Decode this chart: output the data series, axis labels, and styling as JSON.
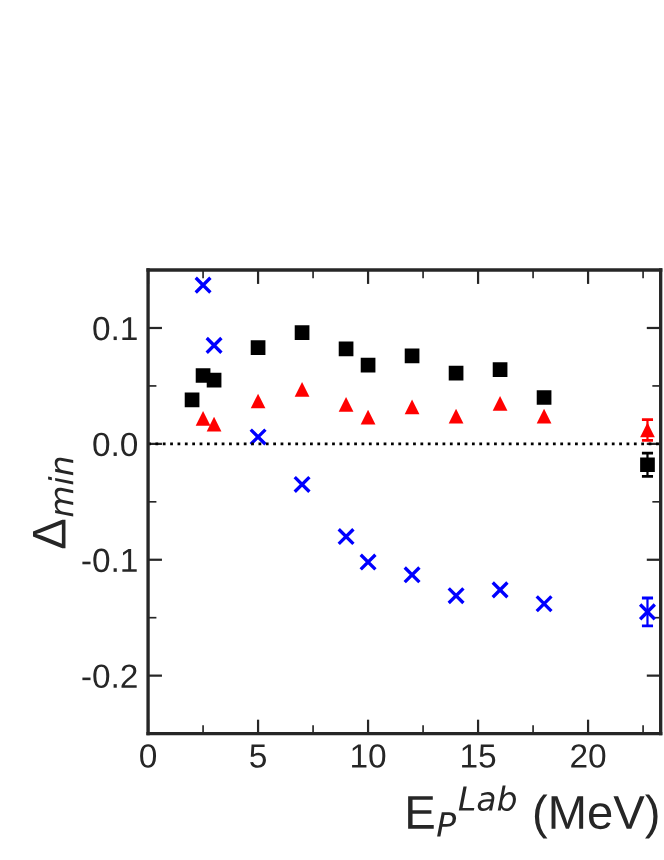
{
  "chart_data": {
    "type": "scatter",
    "xlabel": "E$_{P}$$^{Lab}$ (MeV)",
    "ylabel": "Δ$_{min}$",
    "xlim": [
      0,
      23.3
    ],
    "xticks": [
      0,
      5,
      10,
      15,
      20
    ],
    "ylim": [
      -0.25,
      0.15
    ],
    "yticks": [
      {
        "value": -0.2,
        "label": "-0.2"
      },
      {
        "value": -0.1,
        "label": "-0.1"
      },
      {
        "value": 0,
        "label": "0.0"
      },
      {
        "value": 0.1,
        "label": "0.1"
      }
    ],
    "grid": false,
    "legend": false,
    "ref_lines": [
      {
        "axis": "y",
        "value": 0,
        "color": "#000000",
        "line_style": "dotted"
      }
    ],
    "series": [
      {
        "color": "#000000",
        "marker": "square",
        "x": [
          2,
          2.5,
          3,
          5,
          7,
          9,
          10,
          12,
          14,
          16,
          18,
          22.7
        ],
        "values": [
          0.038,
          0.059,
          0.055,
          0.083,
          0.096,
          0.082,
          0.068,
          0.076,
          0.061,
          0.064,
          0.04,
          -0.018
        ],
        "errors": [
          null,
          null,
          null,
          null,
          null,
          null,
          null,
          null,
          null,
          null,
          null,
          0.01
        ]
      },
      {
        "color": "#ff0000",
        "marker": "triangle",
        "x": [
          2.5,
          3,
          5,
          7,
          9,
          10,
          12,
          14,
          16,
          18,
          22.7
        ],
        "values": [
          0.022,
          0.017,
          0.037,
          0.047,
          0.034,
          0.023,
          0.032,
          0.024,
          0.035,
          0.024,
          0.012
        ],
        "errors": [
          null,
          null,
          null,
          null,
          null,
          null,
          null,
          null,
          null,
          null,
          0.009
        ]
      },
      {
        "color": "#0000ff",
        "marker": "cross",
        "x": [
          2.5,
          3,
          5,
          7,
          9,
          10,
          12,
          14,
          16,
          18,
          22.7
        ],
        "values": [
          0.137,
          0.085,
          0.006,
          -0.035,
          -0.08,
          -0.102,
          -0.113,
          -0.131,
          -0.126,
          -0.138,
          -0.145
        ],
        "errors": [
          null,
          null,
          null,
          null,
          null,
          null,
          null,
          null,
          null,
          null,
          0.012
        ]
      }
    ]
  }
}
